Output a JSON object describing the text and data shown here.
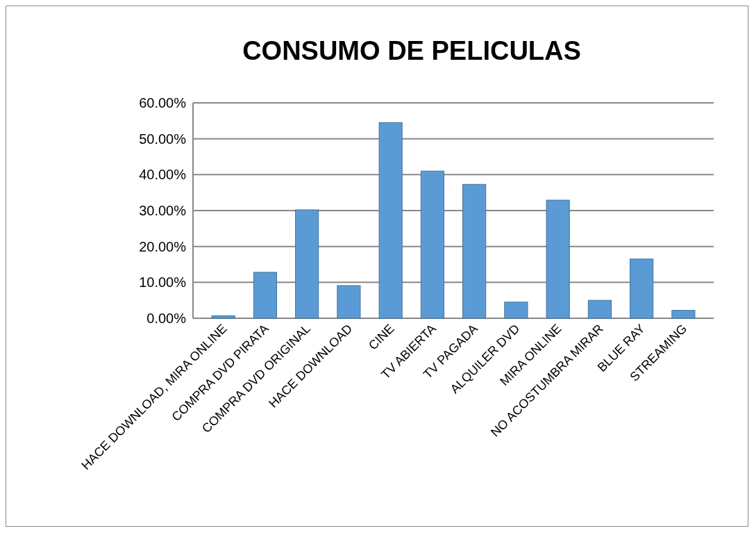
{
  "chart_data": {
    "type": "bar",
    "title": "CONSUMO DE PELICULAS",
    "categories": [
      "HACE DOWNLOAD, MIRA ONLINE",
      "COMPRA DVD PIRATA",
      "COMPRA DVD ORIGINAL",
      "HACE DOWNLOAD",
      "CINE",
      "TV ABIERTA",
      "TV PAGADA",
      "ALQUILER DVD",
      "MIRA ONLINE",
      "NO ACOSTUMBRA MIRAR",
      "BLUE RAY",
      "STREAMING"
    ],
    "values": [
      0.7,
      12.8,
      30.2,
      9.1,
      54.5,
      41.0,
      37.3,
      4.5,
      32.9,
      5.0,
      16.5,
      2.2
    ],
    "color": "#5b9bd5",
    "ylim": [
      0,
      60
    ],
    "yticks": [
      {
        "value": 0,
        "label": "0.00%"
      },
      {
        "value": 10,
        "label": "10.00%"
      },
      {
        "value": 20,
        "label": "20.00%"
      },
      {
        "value": 30,
        "label": "30.00%"
      },
      {
        "value": 40,
        "label": "40.00%"
      },
      {
        "value": 50,
        "label": "50.00%"
      },
      {
        "value": 60,
        "label": "60.00%"
      }
    ],
    "grid": "y"
  }
}
